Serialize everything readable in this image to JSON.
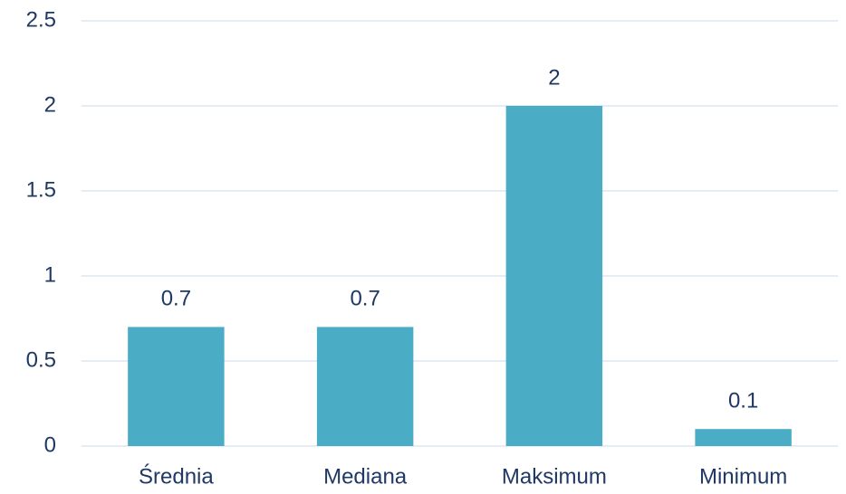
{
  "chart_data": {
    "type": "bar",
    "categories": [
      "Średnia",
      "Mediana",
      "Maksimum",
      "Minimum"
    ],
    "values": [
      0.7,
      0.7,
      2,
      0.1
    ],
    "color": "#4bacc6",
    "ylim": [
      0,
      2.5
    ],
    "yticks": [
      0,
      0.5,
      1,
      1.5,
      2,
      2.5
    ],
    "grid": true
  }
}
